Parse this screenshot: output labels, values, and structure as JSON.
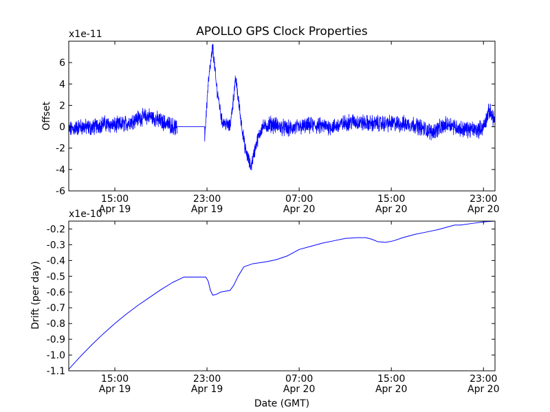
{
  "chart_data": [
    {
      "type": "line",
      "title": "APOLLO GPS Clock Properties",
      "xlabel": "",
      "ylabel": "Offset",
      "y_multiplier": "x1e-11",
      "color": "#0000ff",
      "grid": false,
      "xlim": [
        "2013-04-19 11:00",
        "2013-04-21 00:00"
      ],
      "ylim": [
        -6,
        8
      ],
      "y_ticks": [
        "-6",
        "-4",
        "-2",
        "0",
        "2",
        "4",
        "6"
      ],
      "x_ticks": [
        {
          "time": "15:00",
          "date": "Apr 19"
        },
        {
          "time": "23:00",
          "date": "Apr 19"
        },
        {
          "time": "07:00",
          "date": "Apr 20"
        },
        {
          "time": "15:00",
          "date": "Apr 20"
        },
        {
          "time": "23:00",
          "date": "Apr 20"
        }
      ],
      "series": [
        {
          "segments": [
            {
              "hours": [
                11.0,
                12.0,
                13.0,
                14.0,
                15.0,
                16.0,
                17.0,
                18.0,
                19.0,
                20.0,
                20.4
              ],
              "values": [
                -0.3,
                0.0,
                -0.1,
                0.3,
                0.1,
                0.3,
                0.8,
                1.0,
                0.5,
                0.1,
                -0.2
              ],
              "noise": 0.6
            },
            {
              "hours": [
                20.4,
                22.8
              ],
              "values": [
                0.0,
                0.0
              ],
              "noise": 0.0
            },
            {
              "hours": [
                22.8,
                23.1,
                23.5,
                23.8,
                24.3,
                25.0,
                25.5,
                25.9,
                26.3,
                26.8,
                27.3,
                27.8,
                28.4
              ],
              "values": [
                -1.0,
                4.0,
                7.5,
                4.0,
                0.5,
                0.0,
                4.5,
                1.0,
                -2.0,
                -3.8,
                -1.5,
                0.0,
                0.1
              ],
              "noise": 0.5
            },
            {
              "hours": [
                28.4,
                30.0,
                32.0,
                34.0,
                35.5,
                37.0,
                39.0,
                41.0,
                42.5,
                44.0,
                45.0,
                46.5,
                47.0,
                47.5,
                48.0
              ],
              "values": [
                0.3,
                -0.2,
                0.1,
                0.0,
                0.5,
                0.3,
                0.3,
                0.2,
                -0.5,
                0.3,
                -0.2,
                -0.3,
                0.0,
                1.5,
                0.6
              ],
              "noise": 0.6
            }
          ]
        }
      ]
    },
    {
      "type": "line",
      "title": "",
      "xlabel": "Date (GMT)",
      "ylabel": "Drift (per day)",
      "y_multiplier": "x1e-10",
      "color": "#0000ff",
      "grid": false,
      "xlim": [
        "2013-04-19 11:00",
        "2013-04-21 00:00"
      ],
      "ylim": [
        -1.1,
        -0.15
      ],
      "y_ticks": [
        "-1.1",
        "-1.0",
        "-0.9",
        "-0.8",
        "-0.7",
        "-0.6",
        "-0.5",
        "-0.4",
        "-0.3",
        "-0.2"
      ],
      "x_ticks": [
        {
          "time": "15:00",
          "date": "Apr 19"
        },
        {
          "time": "23:00",
          "date": "Apr 19"
        },
        {
          "time": "07:00",
          "date": "Apr 20"
        },
        {
          "time": "15:00",
          "date": "Apr 20"
        },
        {
          "time": "23:00",
          "date": "Apr 20"
        }
      ],
      "series": [
        {
          "hours": [
            11.0,
            12.0,
            13.0,
            14.0,
            15.0,
            16.0,
            17.0,
            18.0,
            19.0,
            20.0,
            21.0,
            22.0,
            22.9,
            23.1,
            23.3,
            23.5,
            23.8,
            24.2,
            24.6,
            25.0,
            25.3,
            25.7,
            26.2,
            27.0,
            28.0,
            29.0,
            30.0,
            31.0,
            32.0,
            33.0,
            34.0,
            35.0,
            36.0,
            36.8,
            37.3,
            37.8,
            38.5,
            39.2,
            40.0,
            41.0,
            42.0,
            43.0,
            44.0,
            44.5,
            45.0,
            46.0,
            47.0,
            48.0
          ],
          "values": [
            -1.09,
            -1.01,
            -0.935,
            -0.865,
            -0.8,
            -0.74,
            -0.685,
            -0.635,
            -0.585,
            -0.54,
            -0.505,
            -0.505,
            -0.505,
            -0.53,
            -0.59,
            -0.62,
            -0.615,
            -0.6,
            -0.595,
            -0.59,
            -0.56,
            -0.5,
            -0.44,
            -0.42,
            -0.41,
            -0.395,
            -0.37,
            -0.33,
            -0.31,
            -0.29,
            -0.275,
            -0.26,
            -0.255,
            -0.255,
            -0.265,
            -0.28,
            -0.285,
            -0.275,
            -0.255,
            -0.235,
            -0.22,
            -0.205,
            -0.185,
            -0.175,
            -0.175,
            -0.165,
            -0.155,
            -0.15
          ]
        }
      ]
    }
  ]
}
